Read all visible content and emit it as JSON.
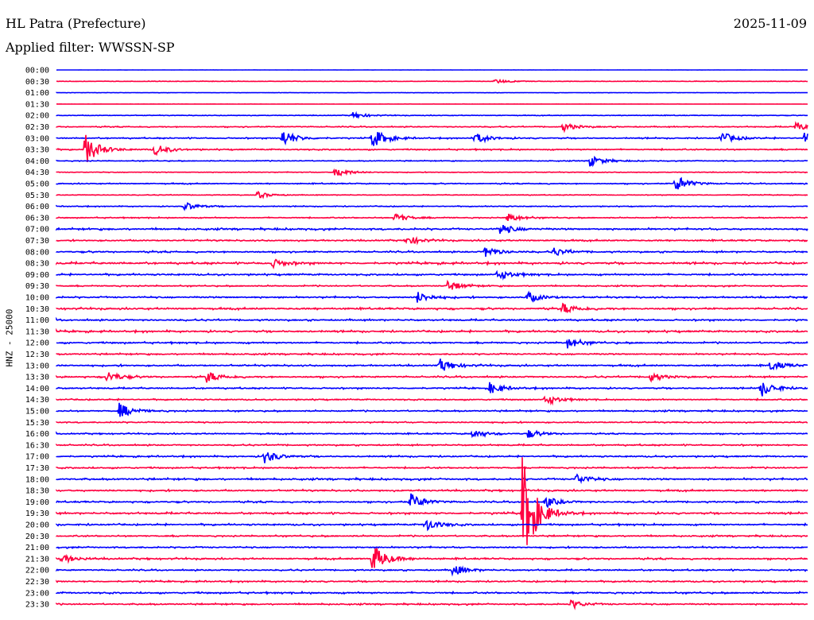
{
  "header": {
    "title": "HL Patra (Prefecture)",
    "date": "2025-11-09",
    "filter": "Applied filter: WWSSN-SP"
  },
  "chart_data": {
    "type": "line",
    "title": "HL Patra (Prefecture)",
    "subtitle": "Applied filter: WWSSN-SP",
    "ylabel": "HNZ - 25000",
    "minutes_per_line": 30,
    "colors": [
      "#0000ff",
      "#ff0040"
    ],
    "rows": [
      "00:00",
      "00:30",
      "01:00",
      "01:30",
      "02:00",
      "02:30",
      "03:00",
      "03:30",
      "04:00",
      "04:30",
      "05:00",
      "05:30",
      "06:00",
      "06:30",
      "07:00",
      "07:30",
      "08:00",
      "08:30",
      "09:00",
      "09:30",
      "10:00",
      "10:30",
      "11:00",
      "11:30",
      "12:00",
      "12:30",
      "13:00",
      "13:30",
      "14:00",
      "14:30",
      "15:00",
      "15:30",
      "16:00",
      "16:30",
      "17:00",
      "17:30",
      "18:00",
      "18:30",
      "19:00",
      "19:30",
      "20:00",
      "20:30",
      "21:00",
      "21:30",
      "22:00",
      "22:30",
      "23:00",
      "23:30"
    ],
    "noise_level": [
      0.05,
      0.15,
      0.1,
      0.05,
      0.2,
      0.3,
      0.35,
      0.35,
      0.25,
      0.2,
      0.3,
      0.2,
      0.25,
      0.3,
      0.5,
      0.4,
      0.45,
      0.55,
      0.45,
      0.35,
      0.45,
      0.5,
      0.45,
      0.5,
      0.45,
      0.4,
      0.45,
      0.45,
      0.4,
      0.35,
      0.4,
      0.35,
      0.35,
      0.4,
      0.4,
      0.4,
      0.5,
      0.45,
      0.45,
      0.5,
      0.45,
      0.4,
      0.4,
      0.45,
      0.4,
      0.4,
      0.45,
      0.4
    ],
    "events": [
      {
        "row": "00:30",
        "minute": 17.5,
        "amp": 0.2
      },
      {
        "row": "02:00",
        "minute": 11.8,
        "amp": 0.3
      },
      {
        "row": "02:30",
        "minute": 20.2,
        "amp": 0.4
      },
      {
        "row": "02:30",
        "minute": 29.5,
        "amp": 0.4
      },
      {
        "row": "03:00",
        "minute": 9.0,
        "amp": 0.8
      },
      {
        "row": "03:00",
        "minute": 12.6,
        "amp": 0.9
      },
      {
        "row": "03:00",
        "minute": 16.7,
        "amp": 0.5
      },
      {
        "row": "03:00",
        "minute": 26.5,
        "amp": 0.6
      },
      {
        "row": "03:00",
        "minute": 29.8,
        "amp": 0.6
      },
      {
        "row": "03:30",
        "minute": 1.1,
        "amp": 1.5
      },
      {
        "row": "03:30",
        "minute": 3.9,
        "amp": 0.5
      },
      {
        "row": "04:00",
        "minute": 21.3,
        "amp": 0.5
      },
      {
        "row": "04:30",
        "minute": 11.1,
        "amp": 0.5
      },
      {
        "row": "05:00",
        "minute": 24.7,
        "amp": 0.8
      },
      {
        "row": "05:30",
        "minute": 8.0,
        "amp": 0.3
      },
      {
        "row": "06:00",
        "minute": 5.1,
        "amp": 0.4
      },
      {
        "row": "06:30",
        "minute": 13.5,
        "amp": 0.4
      },
      {
        "row": "06:30",
        "minute": 18.0,
        "amp": 0.4
      },
      {
        "row": "07:00",
        "minute": 17.7,
        "amp": 0.5
      },
      {
        "row": "07:30",
        "minute": 14.0,
        "amp": 0.4
      },
      {
        "row": "08:00",
        "minute": 17.1,
        "amp": 0.5
      },
      {
        "row": "08:00",
        "minute": 19.8,
        "amp": 0.4
      },
      {
        "row": "08:30",
        "minute": 8.6,
        "amp": 0.4
      },
      {
        "row": "09:00",
        "minute": 17.6,
        "amp": 0.5
      },
      {
        "row": "09:30",
        "minute": 15.6,
        "amp": 0.5
      },
      {
        "row": "10:00",
        "minute": 14.4,
        "amp": 0.5
      },
      {
        "row": "10:00",
        "minute": 18.8,
        "amp": 0.5
      },
      {
        "row": "10:30",
        "minute": 20.2,
        "amp": 0.5
      },
      {
        "row": "12:00",
        "minute": 20.4,
        "amp": 0.5
      },
      {
        "row": "13:00",
        "minute": 15.3,
        "amp": 0.6
      },
      {
        "row": "13:00",
        "minute": 28.5,
        "amp": 0.5
      },
      {
        "row": "13:30",
        "minute": 2.0,
        "amp": 0.5
      },
      {
        "row": "13:30",
        "minute": 6.0,
        "amp": 0.5
      },
      {
        "row": "13:30",
        "minute": 23.7,
        "amp": 0.4
      },
      {
        "row": "14:00",
        "minute": 17.3,
        "amp": 0.5
      },
      {
        "row": "14:00",
        "minute": 28.1,
        "amp": 0.8
      },
      {
        "row": "14:30",
        "minute": 19.5,
        "amp": 0.5
      },
      {
        "row": "15:00",
        "minute": 2.5,
        "amp": 0.7
      },
      {
        "row": "16:00",
        "minute": 16.6,
        "amp": 0.4
      },
      {
        "row": "16:00",
        "minute": 18.8,
        "amp": 0.4
      },
      {
        "row": "17:00",
        "minute": 8.3,
        "amp": 0.6
      },
      {
        "row": "18:00",
        "minute": 20.7,
        "amp": 0.5
      },
      {
        "row": "19:00",
        "minute": 14.1,
        "amp": 0.8
      },
      {
        "row": "19:00",
        "minute": 19.5,
        "amp": 0.5
      },
      {
        "row": "19:30",
        "minute": 18.6,
        "amp": 5.0
      },
      {
        "row": "20:00",
        "minute": 14.7,
        "amp": 0.6
      },
      {
        "row": "21:30",
        "minute": 12.6,
        "amp": 1.4
      },
      {
        "row": "21:30",
        "minute": 0.2,
        "amp": 0.4
      },
      {
        "row": "22:00",
        "minute": 15.8,
        "amp": 0.5
      },
      {
        "row": "23:30",
        "minute": 20.5,
        "amp": 0.4
      }
    ]
  }
}
